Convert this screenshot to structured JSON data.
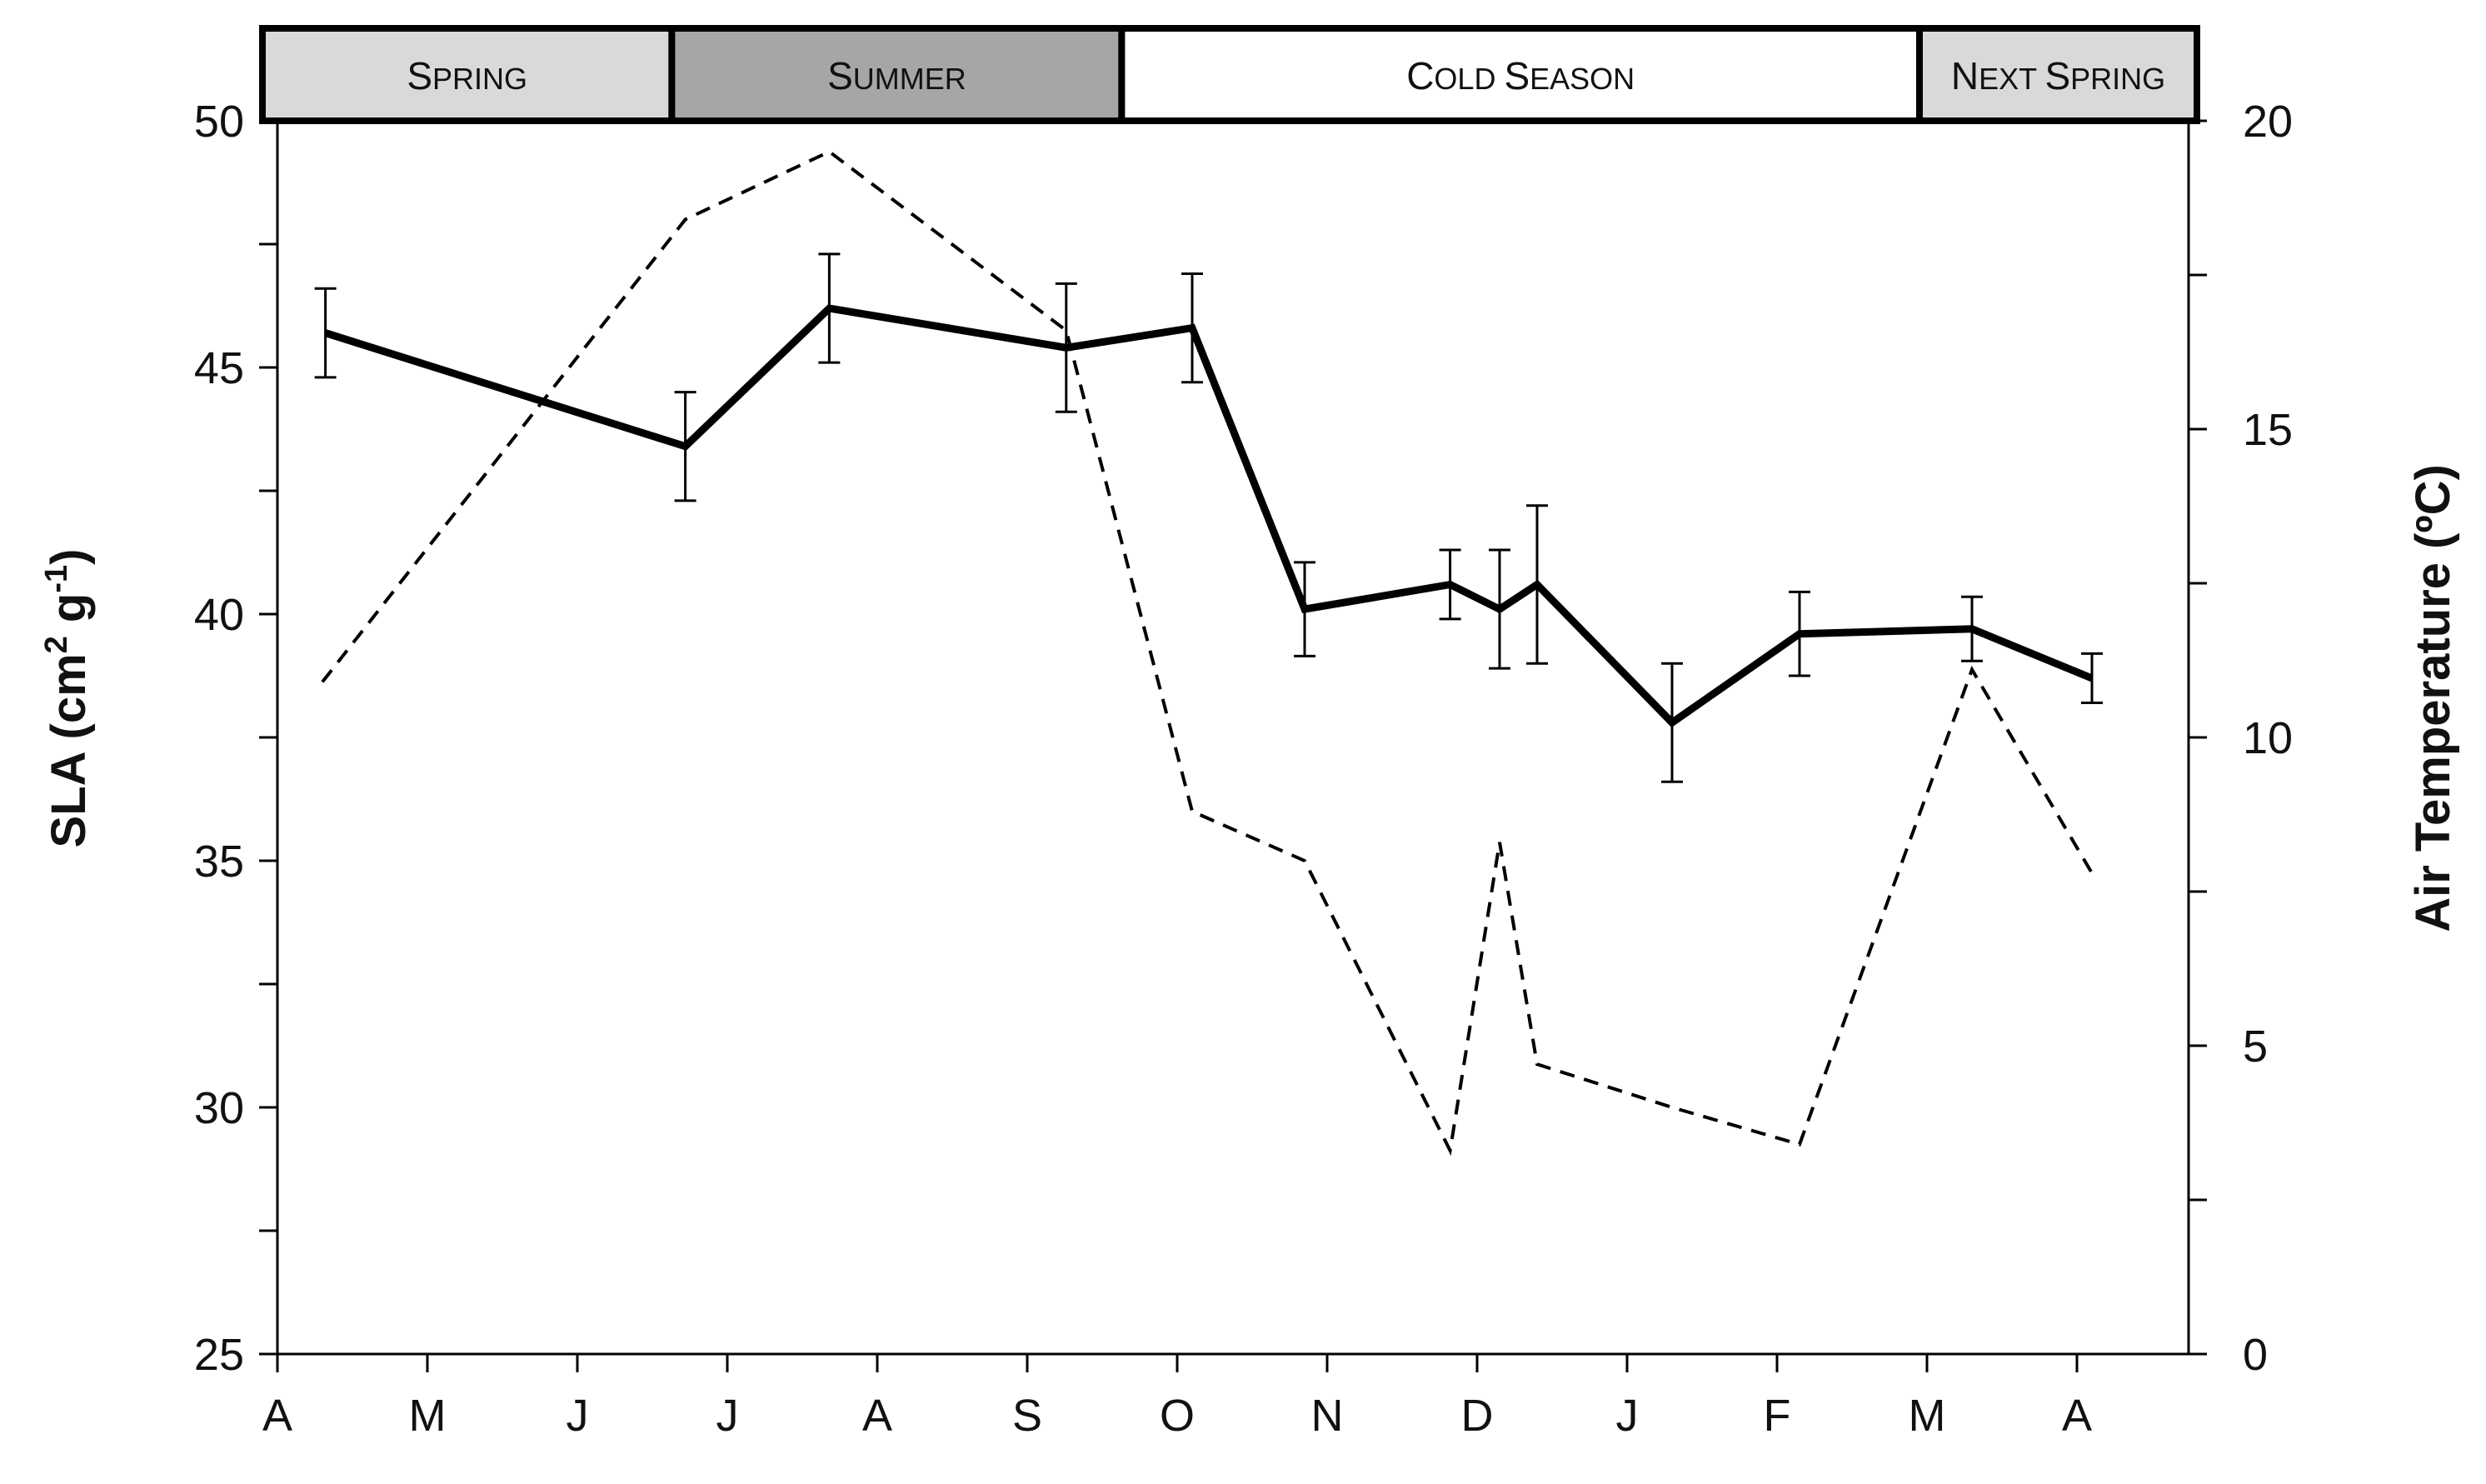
{
  "chart_data": {
    "type": "line",
    "title": "",
    "xlabel": "",
    "ylabel": "SLA (cm2 g-1)",
    "ylabel_parts": {
      "main": "SLA (cm",
      "sup1": "2",
      "mid": " g",
      "sup2": "-1",
      "end": ")"
    },
    "y2label": "Air Temperature (ºC)",
    "x_ticks": [
      "A",
      "M",
      "J",
      "J",
      "A",
      "S",
      "O",
      "N",
      "D",
      "J",
      "F",
      "M",
      "A"
    ],
    "xlim": [
      0,
      12.8
    ],
    "ylim": [
      25,
      50
    ],
    "y_ticks": [
      25,
      30,
      35,
      40,
      45,
      50
    ],
    "y2lim": [
      0,
      20
    ],
    "y2_ticks": [
      0,
      5,
      10,
      15,
      20
    ],
    "y2_minor_ticks": [
      2.5,
      7.5,
      12.5,
      17.5
    ],
    "seasons": [
      {
        "first": "S",
        "rest": "PRING",
        "start": -0.1,
        "end": 2.63,
        "fill": "#d9d9d9"
      },
      {
        "first": "S",
        "rest": "UMMER",
        "start": 2.63,
        "end": 5.63,
        "fill": "#a6a6a6"
      },
      {
        "first": "C",
        "rest": "OLD ",
        "first2": "S",
        "rest2": "EASON",
        "start": 5.63,
        "end": 10.95,
        "fill": "#ffffff"
      },
      {
        "first": "N",
        "rest": "EXT ",
        "first2": "S",
        "rest2": "PRING",
        "start": 10.95,
        "end": 12.8,
        "fill": "#d9d9d9"
      }
    ],
    "series": [
      {
        "name": "SLA",
        "axis": "left",
        "style": "solid",
        "color": "#000000",
        "x": [
          0.32,
          2.72,
          3.68,
          5.26,
          6.1,
          6.85,
          7.82,
          8.15,
          8.4,
          9.3,
          10.15,
          11.3,
          12.1
        ],
        "values": [
          45.7,
          43.4,
          46.2,
          45.4,
          45.8,
          40.1,
          40.6,
          40.1,
          40.6,
          37.8,
          39.6,
          39.7,
          38.7
        ],
        "errors": [
          0.9,
          1.1,
          1.1,
          1.3,
          1.1,
          0.95,
          0.7,
          1.2,
          1.6,
          1.2,
          0.85,
          0.65,
          0.5
        ]
      },
      {
        "name": "Air Temperature",
        "axis": "right",
        "style": "dashed",
        "color": "#000000",
        "x": [
          0.3,
          2.72,
          3.68,
          5.26,
          6.1,
          6.85,
          7.82,
          8.15,
          8.4,
          9.3,
          10.15,
          11.3,
          12.1
        ],
        "values": [
          10.9,
          18.4,
          19.5,
          16.6,
          8.8,
          8.0,
          3.3,
          8.3,
          4.7,
          4.0,
          3.4,
          11.1,
          7.8
        ]
      }
    ]
  }
}
